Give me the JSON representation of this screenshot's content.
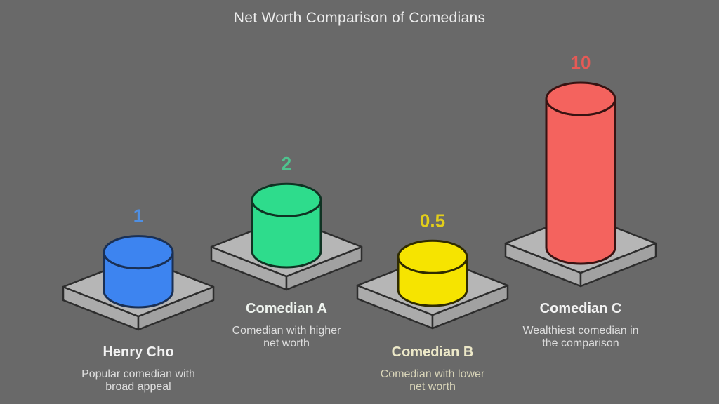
{
  "colors": {
    "background": "#696969",
    "title_text": "#ececec",
    "platform_top": "#b6b6b6",
    "platform_left": "#ababab",
    "platform_right": "#a1a1a1",
    "platform_outline": "#2d2d2d"
  },
  "chart_data": {
    "type": "bar",
    "title": "Net Worth Comparison of Comedians",
    "categories": [
      "Henry Cho",
      "Comedian A",
      "Comedian B",
      "Comedian C"
    ],
    "values": [
      1,
      2,
      0.5,
      10
    ],
    "bars": [
      {
        "category": "Henry Cho",
        "value": 1,
        "value_label": "1",
        "description": [
          "Popular comedian with",
          "broad appeal"
        ],
        "cylinder_color": "#3d84f0",
        "outline_color": "#1a3055",
        "value_label_color": "#4f8fe3",
        "name_color": "#f2f2f2",
        "desc_color": "#dedede"
      },
      {
        "category": "Comedian A",
        "value": 2,
        "value_label": "2",
        "description": [
          "Comedian with higher",
          "net worth"
        ],
        "cylinder_color": "#2edc8c",
        "outline_color": "#0f3323",
        "value_label_color": "#4fc28e",
        "name_color": "#eef3ee",
        "desc_color": "#dedede"
      },
      {
        "category": "Comedian B",
        "value": 0.5,
        "value_label": "0.5",
        "description": [
          "Comedian with lower",
          "net worth"
        ],
        "cylinder_color": "#f6e400",
        "outline_color": "#2f2b00",
        "value_label_color": "#e2ce1a",
        "name_color": "#ece8c8",
        "desc_color": "#d9d5b9"
      },
      {
        "category": "Comedian C",
        "value": 10,
        "value_label": "10",
        "description": [
          "Wealthiest comedian in",
          "the comparison"
        ],
        "cylinder_color": "#f4635e",
        "outline_color": "#381312",
        "value_label_color": "#e55a56",
        "name_color": "#f2f2f2",
        "desc_color": "#dedede"
      }
    ]
  }
}
